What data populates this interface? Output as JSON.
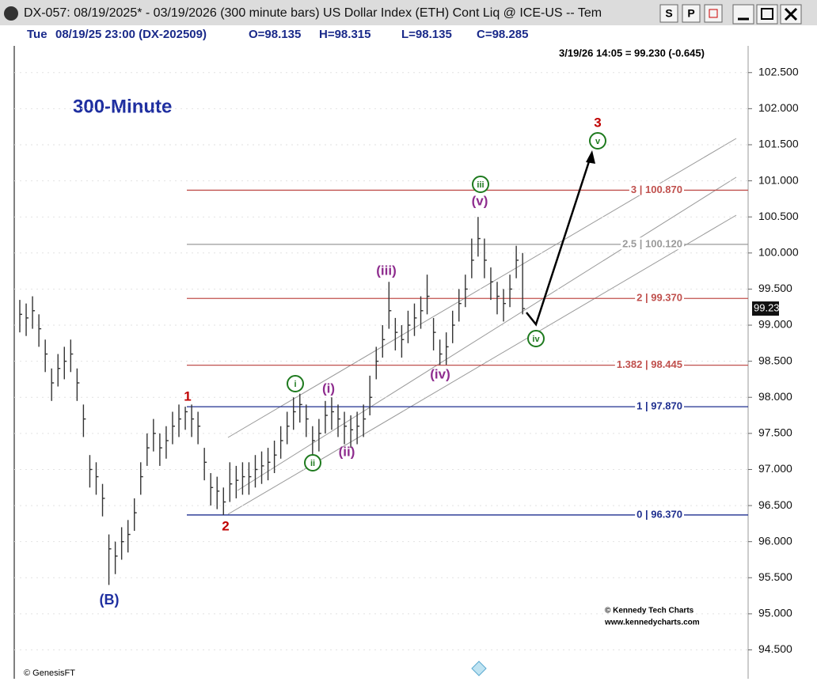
{
  "window": {
    "title": "DX-057: 08/19/2025* - 03/19/2026 (300 minute bars)  US Dollar Index (ETH) Cont Liq @ ICE-US -- Tem",
    "buttons": [
      "S",
      "P"
    ]
  },
  "info": {
    "day": "Tue",
    "stamp": "08/19/25 23:00 (DX-202509)",
    "open": "O=98.135",
    "high": "H=98.315",
    "low": "L=98.135",
    "close": "C=98.285"
  },
  "chart_data": {
    "type": "ohlc",
    "title": "300-Minute",
    "status": "3/19/26 14:05 = 99.230 (-0.645)",
    "ylim": [
      94.1,
      102.87
    ],
    "yticks": [
      {
        "value": 94.5,
        "label": "94.500"
      },
      {
        "value": 95,
        "label": "95.000"
      },
      {
        "value": 95.5,
        "label": "95.500"
      },
      {
        "value": 96,
        "label": "96.000"
      },
      {
        "value": 96.5,
        "label": "96.500"
      },
      {
        "value": 97,
        "label": "97.000"
      },
      {
        "value": 97.5,
        "label": "97.500"
      },
      {
        "value": 98,
        "label": "98.000"
      },
      {
        "value": 98.5,
        "label": "98.500"
      },
      {
        "value": 99,
        "label": "99.000"
      },
      {
        "value": 99.5,
        "label": "99.500"
      },
      {
        "value": 100,
        "label": "100.000"
      },
      {
        "value": 100.5,
        "label": "100.500"
      },
      {
        "value": 101,
        "label": "101.000"
      },
      {
        "value": 101.5,
        "label": "101.500"
      },
      {
        "value": 102,
        "label": "102.000"
      },
      {
        "value": 102.5,
        "label": "102.500"
      }
    ],
    "grid": true,
    "color": "#333333",
    "series": [
      {
        "name": "DX-057",
        "high": [
          99.35,
          99.3,
          99.4,
          99.15,
          98.8,
          98.4,
          98.6,
          98.7,
          98.8,
          98.4,
          97.9,
          97.2,
          97.1,
          96.8,
          96.1,
          96.0,
          96.2,
          96.3,
          96.6,
          97.1,
          97.5,
          97.7,
          97.5,
          97.6,
          97.8,
          97.9,
          97.87,
          97.9,
          97.8,
          97.3,
          96.95,
          96.9,
          96.75,
          97.1,
          97.05,
          97.1,
          97.1,
          97.2,
          97.25,
          97.3,
          97.4,
          97.6,
          97.8,
          98.0,
          98.05,
          97.9,
          97.6,
          97.7,
          97.95,
          98.0,
          97.9,
          97.8,
          97.75,
          97.8,
          97.9,
          98.3,
          98.7,
          99.0,
          99.6,
          99.1,
          99.0,
          99.2,
          99.3,
          99.4,
          99.7,
          99.1,
          98.8,
          98.9,
          99.2,
          99.5,
          99.7,
          100.2,
          100.5,
          100.2,
          99.8,
          99.6,
          99.5,
          99.7,
          100.1,
          100.0
        ],
        "low": [
          98.9,
          98.85,
          98.95,
          98.7,
          98.35,
          97.95,
          98.15,
          98.25,
          98.35,
          97.95,
          97.45,
          96.75,
          96.65,
          96.35,
          95.4,
          95.55,
          95.75,
          95.85,
          96.15,
          96.65,
          97.05,
          97.25,
          97.05,
          97.15,
          97.35,
          97.45,
          97.55,
          97.45,
          97.35,
          96.85,
          96.5,
          96.45,
          96.37,
          96.55,
          96.6,
          96.65,
          96.65,
          96.75,
          96.8,
          96.85,
          96.95,
          97.15,
          97.35,
          97.55,
          97.65,
          97.45,
          97.15,
          97.25,
          97.5,
          97.55,
          97.45,
          97.35,
          97.3,
          97.35,
          97.45,
          97.75,
          98.25,
          98.55,
          98.95,
          98.65,
          98.55,
          98.75,
          98.85,
          98.95,
          99.15,
          98.65,
          98.45,
          98.45,
          98.75,
          99.05,
          99.25,
          99.65,
          99.95,
          99.65,
          99.35,
          99.15,
          99.05,
          99.25,
          99.65,
          99.15
        ],
        "close": [
          99.15,
          99.1,
          99.2,
          98.95,
          98.6,
          98.2,
          98.4,
          98.5,
          98.6,
          98.2,
          97.7,
          97.0,
          96.9,
          96.6,
          95.9,
          95.8,
          96.0,
          96.1,
          96.4,
          96.9,
          97.3,
          97.5,
          97.3,
          97.4,
          97.6,
          97.7,
          97.8,
          97.7,
          97.6,
          97.1,
          96.75,
          96.7,
          96.55,
          96.8,
          96.85,
          96.9,
          96.9,
          97.0,
          97.05,
          97.1,
          97.2,
          97.4,
          97.6,
          97.8,
          97.9,
          97.7,
          97.4,
          97.5,
          97.75,
          97.8,
          97.7,
          97.6,
          97.55,
          97.6,
          97.7,
          98.0,
          98.5,
          98.8,
          99.2,
          98.9,
          98.8,
          99.0,
          99.1,
          99.2,
          99.4,
          98.9,
          98.6,
          98.7,
          99.0,
          99.3,
          99.5,
          99.9,
          100.2,
          99.9,
          99.6,
          99.4,
          99.3,
          99.5,
          99.9,
          99.23
        ]
      }
    ],
    "levels": [
      {
        "value": 100.87,
        "label": "3 | 100.870",
        "color": "#c0504d"
      },
      {
        "value": 100.12,
        "label": "2.5 | 100.120",
        "color": "#9a9a9a"
      },
      {
        "value": 99.37,
        "label": "2 | 99.370",
        "color": "#c0504d"
      },
      {
        "value": 98.445,
        "label": "1.382 | 98.445",
        "color": "#c0504d"
      },
      {
        "value": 97.87,
        "label": "1 | 97.870",
        "color": "#1f2f8f"
      },
      {
        "value": 96.37,
        "label": "0 | 96.370",
        "color": "#1f2f8f"
      }
    ],
    "last": {
      "value": 99.23,
      "label": "99.230"
    },
    "annotations": [
      "1",
      "2",
      "(B)",
      "3",
      "i",
      "ii",
      "iii",
      "iv",
      "v",
      "(i)",
      "(ii)",
      "(iii)",
      "(iv)",
      "(v)"
    ],
    "credits": [
      "© Kennedy Tech Charts",
      "www.kennedycharts.com",
      "© GenesisFT"
    ]
  }
}
